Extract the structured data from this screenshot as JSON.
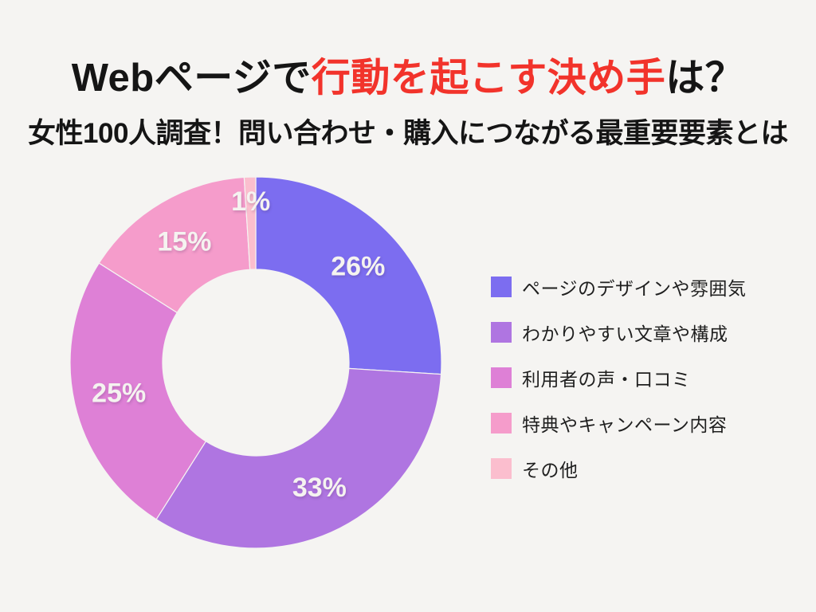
{
  "background_color": "#F5F4F2",
  "header": {
    "title_prefix": "Webページで",
    "title_highlight": "行動を起こす決め手",
    "title_suffix": "は？",
    "title_color": "#151515",
    "highlight_color": "#F2332B",
    "subtitle": "女性100人調査！問い合わせ・購入につながる最重要要素とは"
  },
  "chart_data": {
    "type": "pie",
    "variant": "donut",
    "title": "Webページで行動を起こす決め手は？",
    "subtitle": "女性100人調査！問い合わせ・購入につながる最重要要素とは",
    "direction": "clockwise",
    "start_angle_deg": 0,
    "inner_radius_ratio": 0.5,
    "legend_position": "right",
    "unit": "%",
    "percent_label_color": "#F5F3F0",
    "categories": [
      "ページのデザインや雰囲気",
      "わかりやすい文章や構成",
      "利用者の声・口コミ",
      "特典やキャンペーン内容",
      "その他"
    ],
    "values": [
      26,
      33,
      25,
      15,
      1
    ],
    "slices": [
      {
        "label": "ページのデザインや雰囲気",
        "value": 26,
        "display": "26%",
        "color": "#7C6DF0"
      },
      {
        "label": "わかりやすい文章や構成",
        "value": 33,
        "display": "33%",
        "color": "#AF75E1"
      },
      {
        "label": "利用者の声・口コミ",
        "value": 25,
        "display": "25%",
        "color": "#DE80D6"
      },
      {
        "label": "特典やキャンペーン内容",
        "value": 15,
        "display": "15%",
        "color": "#F59CCB"
      },
      {
        "label": "その他",
        "value": 1,
        "display": "1%",
        "color": "#FBBECE"
      }
    ]
  }
}
